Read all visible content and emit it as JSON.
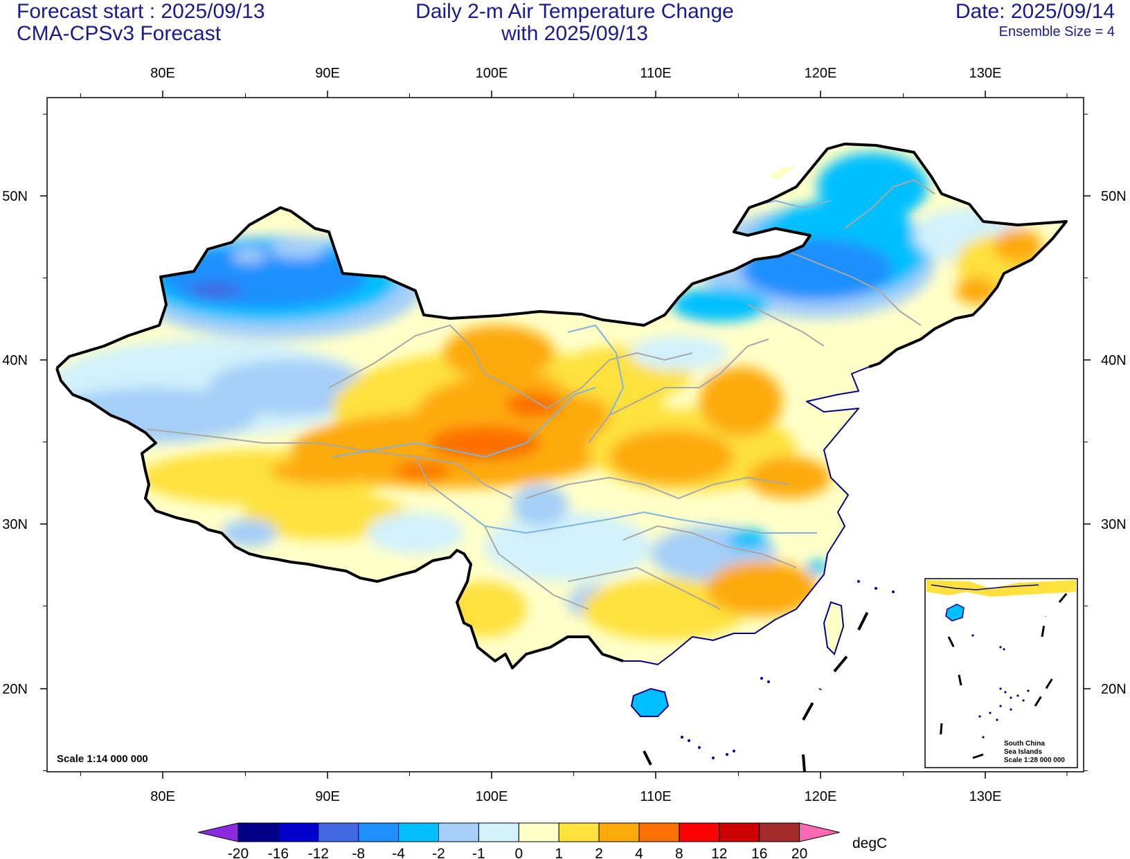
{
  "header": {
    "forecast_start": "Forecast start : 2025/09/13",
    "model": "CMA-CPSv3 Forecast",
    "title_line1": "Daily 2-m Air Temperature Change",
    "title_line2": "with 2025/09/13",
    "date": "Date: 2025/09/14",
    "ensemble": "Ensemble Size = 4"
  },
  "map": {
    "lon_labels": [
      "80E",
      "90E",
      "100E",
      "110E",
      "120E",
      "130E"
    ],
    "lat_labels": [
      "50N",
      "40N",
      "30N",
      "20N"
    ],
    "scale_label": "Scale 1:14 000 000",
    "inset": {
      "line1": "South China",
      "line2": "Sea Islands",
      "line3": "Scale 1:28 000 000"
    }
  },
  "colorbar": {
    "unit": "degC",
    "labels": [
      "-20",
      "-16",
      "-12",
      "-8",
      "-4",
      "-2",
      "-1",
      "0",
      "1",
      "2",
      "4",
      "8",
      "12",
      "16",
      "20"
    ],
    "colors": [
      "#8b2be2",
      "#00008b",
      "#0000cd",
      "#4169e1",
      "#1e90ff",
      "#00bfff",
      "#a4cff8",
      "#d2f1fb",
      "#ffffc8",
      "#fee13c",
      "#fdaa08",
      "#fd7005",
      "#fe0000",
      "#cc0000",
      "#a52a2a",
      "#fe69b4"
    ]
  },
  "colors": {
    "header_text": "#1a1a8c",
    "border": "#000000",
    "province_lines": "#a8a8a8",
    "rivers": "#7fb2dc",
    "coastline": "#00008b"
  }
}
